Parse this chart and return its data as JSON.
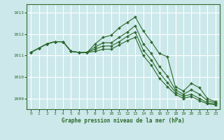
{
  "background_color": "#cce8ea",
  "grid_color": "#ffffff",
  "line_color": "#2d6a2d",
  "title": "Graphe pression niveau de la mer (hPa)",
  "xlim": [
    -0.5,
    23.5
  ],
  "ylim": [
    1008.5,
    1013.4
  ],
  "yticks": [
    1009,
    1010,
    1011,
    1012,
    1013
  ],
  "xticks": [
    0,
    1,
    2,
    3,
    4,
    5,
    6,
    7,
    8,
    9,
    10,
    11,
    12,
    13,
    14,
    15,
    16,
    17,
    18,
    19,
    20,
    21,
    22,
    23
  ],
  "series": [
    [
      1011.15,
      1011.35,
      1011.55,
      1011.65,
      1011.65,
      1011.2,
      1011.15,
      1011.15,
      1011.55,
      1011.85,
      1011.95,
      1012.3,
      1012.55,
      1012.8,
      1012.15,
      1011.65,
      1011.1,
      1010.95,
      1009.55,
      1009.35,
      1009.7,
      1009.5,
      1009.0,
      1008.85
    ],
    [
      1011.15,
      1011.35,
      1011.55,
      1011.65,
      1011.65,
      1011.2,
      1011.15,
      1011.15,
      1011.4,
      1011.6,
      1011.6,
      1011.85,
      1012.1,
      1012.4,
      1011.55,
      1011.1,
      1010.5,
      1010.05,
      1009.4,
      1009.2,
      1009.4,
      1009.2,
      1008.9,
      1008.8
    ],
    [
      1011.15,
      1011.35,
      1011.55,
      1011.65,
      1011.65,
      1011.2,
      1011.15,
      1011.15,
      1011.3,
      1011.45,
      1011.45,
      1011.65,
      1011.9,
      1012.1,
      1011.25,
      1010.8,
      1010.2,
      1009.75,
      1009.3,
      1009.1,
      1009.2,
      1009.0,
      1008.8,
      1008.75
    ],
    [
      1011.15,
      1011.35,
      1011.55,
      1011.65,
      1011.65,
      1011.2,
      1011.15,
      1011.15,
      1011.2,
      1011.3,
      1011.3,
      1011.5,
      1011.7,
      1011.85,
      1011.0,
      1010.55,
      1009.95,
      1009.55,
      1009.2,
      1009.0,
      1009.1,
      1008.9,
      1008.75,
      1008.7
    ]
  ]
}
